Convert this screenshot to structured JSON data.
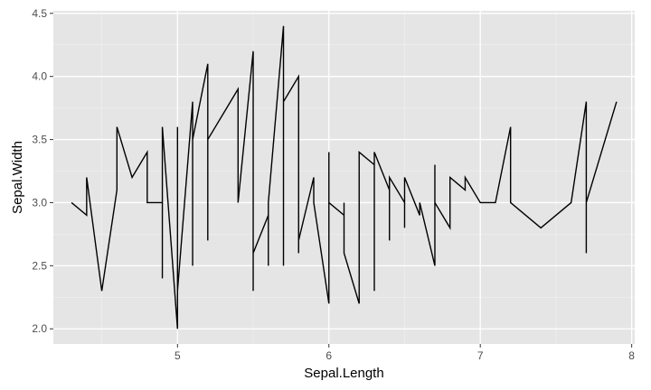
{
  "chart_data": {
    "type": "line",
    "title": "",
    "xlabel": "Sepal.Length",
    "ylabel": "Sepal.Width",
    "xlim": [
      4.18,
      8.02
    ],
    "ylim": [
      1.88,
      4.52
    ],
    "x_ticks": [
      5,
      6,
      7,
      8
    ],
    "x_tick_labels": [
      "5",
      "6",
      "7",
      "8"
    ],
    "y_ticks": [
      2.0,
      2.5,
      3.0,
      3.5,
      4.0,
      4.5
    ],
    "y_tick_labels": [
      "2.0",
      "2.5",
      "3.0",
      "3.5",
      "4.0",
      "4.5"
    ],
    "grid": true,
    "legend": "none",
    "colors": {
      "panel": "#e5e5e5",
      "grid_major": "#ffffff",
      "grid_minor": "#f2f2f2",
      "line": "#000000"
    },
    "series": [
      {
        "x": [
          4.3,
          4.4,
          4.4,
          4.5,
          4.6,
          4.6,
          4.7,
          4.8,
          4.8,
          4.9,
          4.9,
          4.9,
          5.0,
          5.0,
          5.0,
          5.1,
          5.1,
          5.1,
          5.2,
          5.2,
          5.2,
          5.3,
          5.4,
          5.4,
          5.5,
          5.5,
          5.5,
          5.6,
          5.6,
          5.6,
          5.7,
          5.7,
          5.7,
          5.8,
          5.8,
          5.8,
          5.9,
          5.9,
          6.0,
          6.0,
          6.0,
          6.1,
          6.1,
          6.1,
          6.2,
          6.2,
          6.3,
          6.3,
          6.3,
          6.4,
          6.4,
          6.4,
          6.5,
          6.5,
          6.5,
          6.6,
          6.6,
          6.7,
          6.7,
          6.7,
          6.8,
          6.8,
          6.9,
          6.9,
          7.0,
          7.1,
          7.2,
          7.2,
          7.3,
          7.4,
          7.6,
          7.7,
          7.7,
          7.7,
          7.9
        ],
        "y": [
          3.0,
          2.9,
          3.2,
          2.3,
          3.1,
          3.6,
          3.2,
          3.4,
          3.0,
          3.0,
          2.4,
          3.6,
          2.0,
          3.6,
          2.3,
          3.8,
          2.5,
          3.5,
          4.1,
          2.7,
          3.5,
          3.7,
          3.9,
          3.0,
          4.2,
          2.3,
          2.6,
          2.9,
          2.5,
          3.0,
          4.4,
          2.5,
          3.8,
          4.0,
          2.6,
          2.7,
          3.2,
          3.0,
          2.2,
          3.4,
          3.0,
          2.9,
          3.0,
          2.6,
          2.2,
          3.4,
          3.3,
          2.3,
          3.4,
          3.1,
          2.7,
          3.2,
          3.0,
          2.8,
          3.2,
          2.9,
          3.0,
          2.5,
          3.3,
          3.0,
          2.8,
          3.2,
          3.1,
          3.2,
          3.0,
          3.0,
          3.6,
          3.0,
          2.9,
          2.8,
          3.0,
          3.8,
          2.6,
          3.0,
          3.8
        ]
      }
    ]
  }
}
